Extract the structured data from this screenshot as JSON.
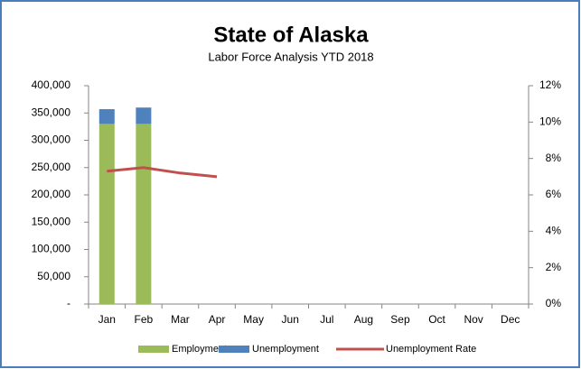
{
  "chart_data": {
    "type": "bar",
    "stacked": true,
    "title": "State of Alaska",
    "subtitle": "Labor Force Analysis YTD 2018",
    "categories": [
      "Jan",
      "Feb",
      "Mar",
      "Apr",
      "May",
      "Jun",
      "Jul",
      "Aug",
      "Sep",
      "Oct",
      "Nov",
      "Dec"
    ],
    "series": [
      {
        "name": "Employment",
        "color": "#9bbb59",
        "values": [
          330000,
          330000,
          null,
          null,
          null,
          null,
          null,
          null,
          null,
          null,
          null,
          null
        ]
      },
      {
        "name": "Unemployment",
        "color": "#4f81bd",
        "values": [
          27000,
          30000,
          null,
          null,
          null,
          null,
          null,
          null,
          null,
          null,
          null,
          null
        ]
      },
      {
        "name": "Unemployment Rate",
        "type": "line",
        "axis": "y2",
        "color": "#c0504d",
        "values": [
          7.3,
          7.5,
          7.2,
          7.0,
          null,
          null,
          null,
          null,
          null,
          null,
          null,
          null
        ]
      }
    ],
    "ylim": [
      0,
      400000
    ],
    "yticks": [
      {
        "value": 0,
        "label": "-"
      },
      {
        "value": 50000,
        "label": "50,000"
      },
      {
        "value": 100000,
        "label": "100,000"
      },
      {
        "value": 150000,
        "label": "150,000"
      },
      {
        "value": 200000,
        "label": "200,000"
      },
      {
        "value": 250000,
        "label": "250,000"
      },
      {
        "value": 300000,
        "label": "300,000"
      },
      {
        "value": 350000,
        "label": "350,000"
      },
      {
        "value": 400000,
        "label": "400,000"
      }
    ],
    "y2lim": [
      0,
      12
    ],
    "y2ticks": [
      {
        "value": 0,
        "label": "0%"
      },
      {
        "value": 2,
        "label": "2%"
      },
      {
        "value": 4,
        "label": "4%"
      },
      {
        "value": 6,
        "label": "6%"
      },
      {
        "value": 8,
        "label": "8%"
      },
      {
        "value": 10,
        "label": "10%"
      },
      {
        "value": 12,
        "label": "12%"
      }
    ],
    "legend": "bottom"
  }
}
